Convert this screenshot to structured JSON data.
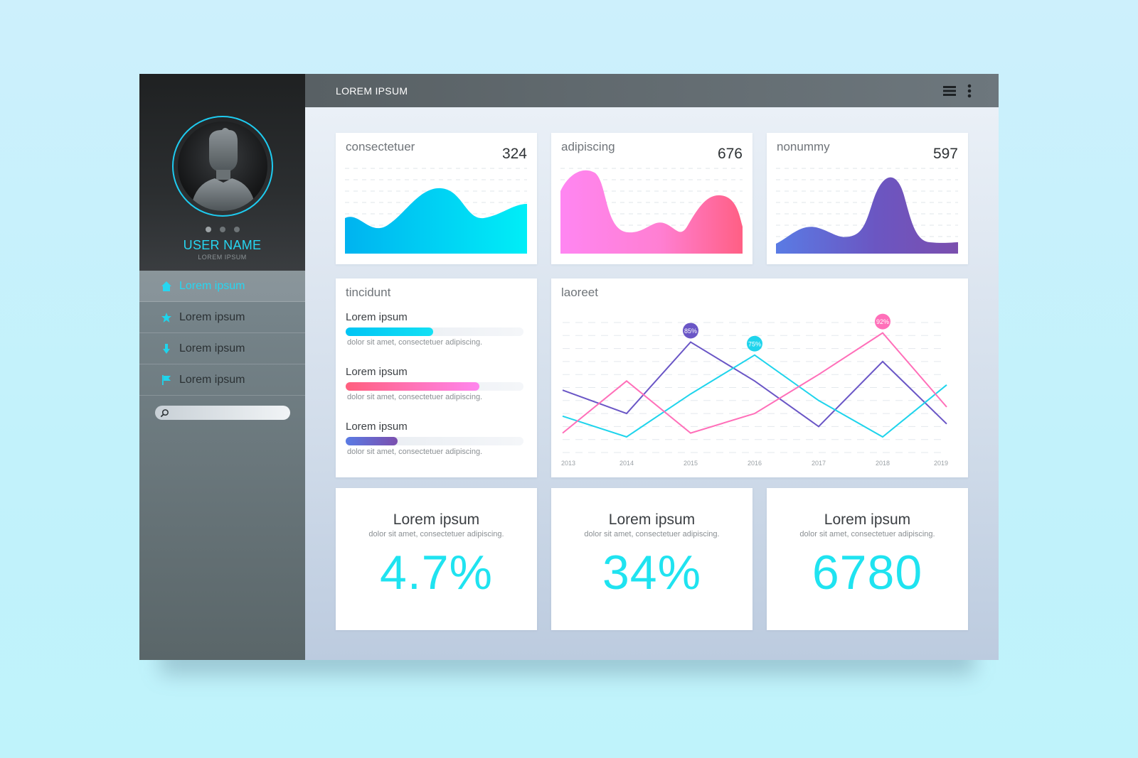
{
  "colors": {
    "accent": "#26d6f1",
    "cyan": "#1fe3f0",
    "pink": "#ff5f8e",
    "magenta": "#ff7fe0",
    "violet": "#6a4fc0",
    "blue": "#00c6ff"
  },
  "sidebar": {
    "user_name": "USER NAME",
    "user_subtitle": "LOREM IPSUM",
    "avatar_icon": "user-silhouette-icon",
    "items": [
      {
        "label": "Lorem ipsum",
        "icon": "home-icon",
        "active": true
      },
      {
        "label": "Lorem ipsum",
        "icon": "star-icon",
        "active": false
      },
      {
        "label": "Lorem ipsum",
        "icon": "download-icon",
        "active": false
      },
      {
        "label": "Lorem ipsum",
        "icon": "flag-icon",
        "active": false
      }
    ],
    "search_icon": "search-icon",
    "search_value": ""
  },
  "topbar": {
    "title": "LOREM IPSUM",
    "menu_icon": "hamburger-menu-icon",
    "more_icon": "more-vertical-icon"
  },
  "cards": [
    {
      "label": "consectetuer",
      "value": "324"
    },
    {
      "label": "adipiscing",
      "value": "676"
    },
    {
      "label": "nonummy",
      "value": "597"
    }
  ],
  "progress_card": {
    "title": "tincidunt",
    "items": [
      {
        "title": "Lorem ipsum",
        "desc": "dolor sit amet, consectetuer adipiscing.",
        "fraction": 0.49
      },
      {
        "title": "Lorem ipsum",
        "desc": "dolor sit amet, consectetuer adipiscing.",
        "fraction": 0.75
      },
      {
        "title": "Lorem ipsum",
        "desc": "dolor sit amet, consectetuer adipiscing.",
        "fraction": 0.29
      }
    ]
  },
  "chart_data": {
    "type": "line",
    "title": "laoreet",
    "x": [
      "2013",
      "2014",
      "2015",
      "2016",
      "2017",
      "2018",
      "2019"
    ],
    "ylim": [
      0,
      100
    ],
    "grid": true,
    "series": [
      {
        "color": "#6a56c6",
        "values": [
          48,
          30,
          85,
          55,
          20,
          70,
          22
        ],
        "peak_label": "85%"
      },
      {
        "color": "#1fd4ec",
        "values": [
          28,
          12,
          45,
          75,
          40,
          12,
          52
        ],
        "peak_label": "75%"
      },
      {
        "color": "#ff6fb9",
        "values": [
          15,
          55,
          15,
          30,
          60,
          92,
          35
        ],
        "peak_label": "92%"
      }
    ]
  },
  "stats": [
    {
      "title": "Lorem ipsum",
      "desc": "dolor sit amet, consectetuer adipiscing.",
      "value": "4.7%"
    },
    {
      "title": "Lorem ipsum",
      "desc": "dolor sit amet, consectetuer adipiscing.",
      "value": "34%"
    },
    {
      "title": "Lorem ipsum",
      "desc": "dolor sit amet, consectetuer adipiscing.",
      "value": "6780"
    }
  ]
}
